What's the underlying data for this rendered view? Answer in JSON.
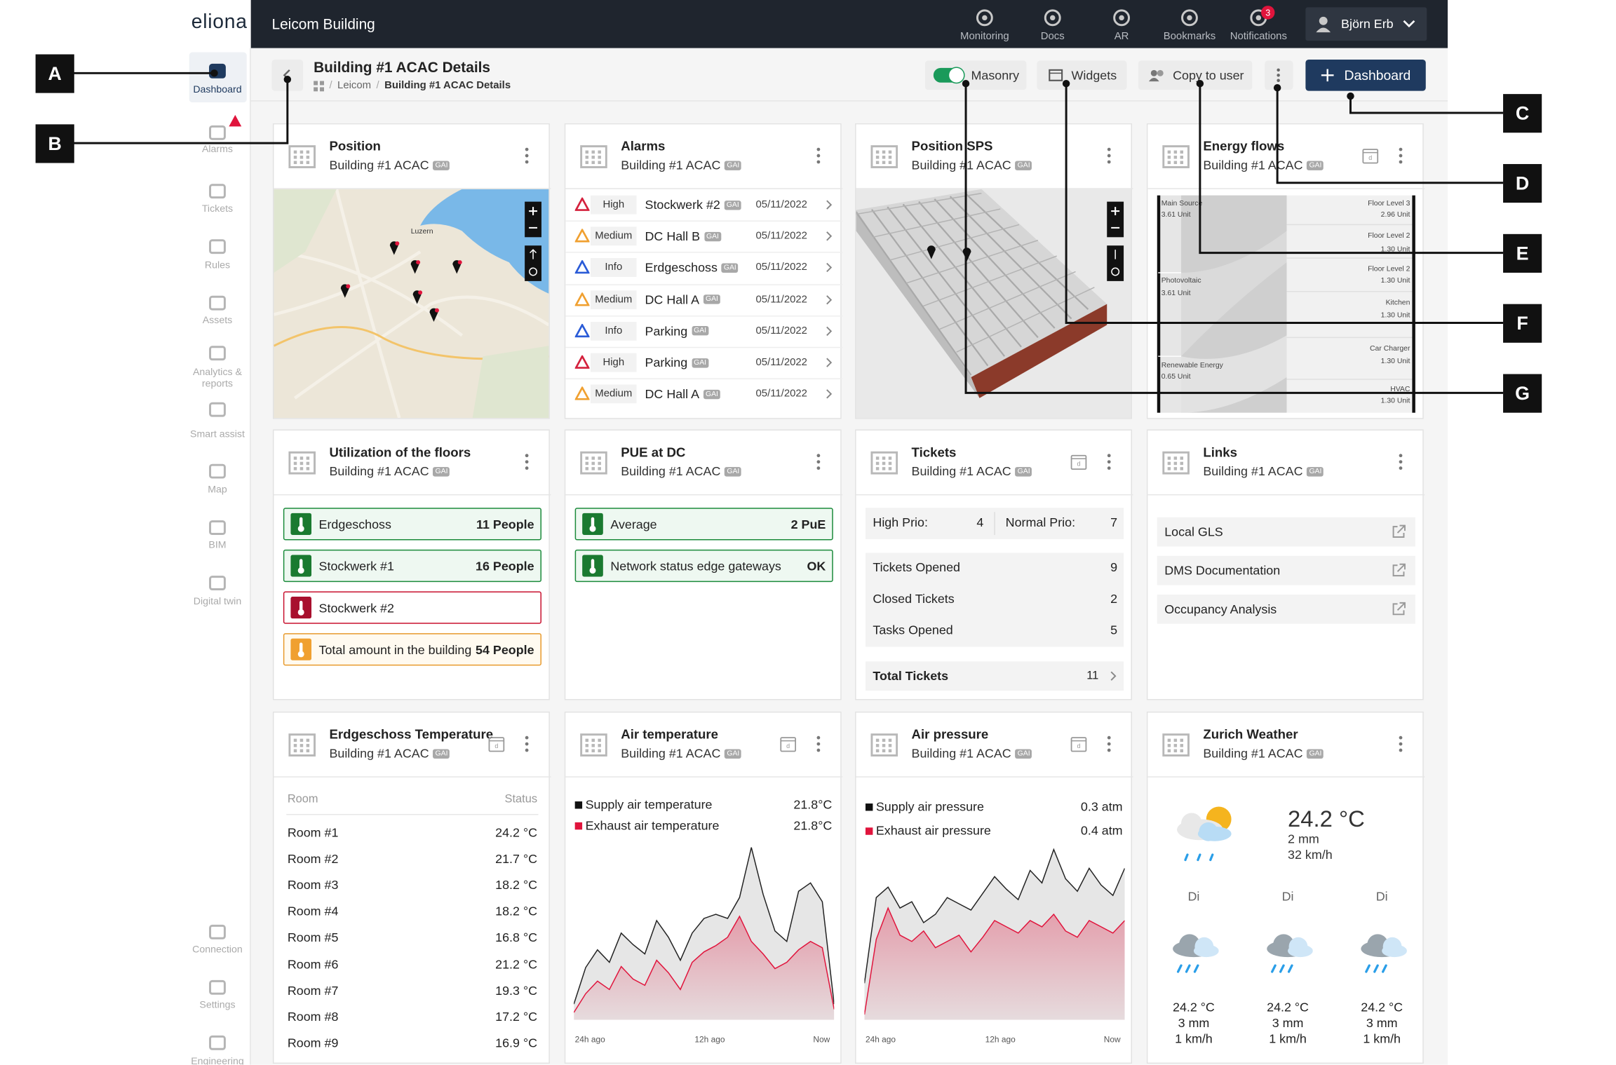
{
  "app": {
    "logo": "eliona",
    "title": "Leicom Building"
  },
  "topbar": {
    "items": [
      "Monitoring",
      "Docs",
      "AR",
      "Bookmarks",
      "Notifications"
    ],
    "notifications": 3,
    "user": "Björn Erb"
  },
  "sidebar": {
    "items": [
      "Dashboard",
      "Alarms",
      "Tickets",
      "Rules",
      "Assets",
      "Analytics & reports",
      "Smart assist",
      "Map",
      "BIM",
      "Digital twin"
    ],
    "bottom": [
      "Connection",
      "Settings",
      "Engineering"
    ]
  },
  "page": {
    "title": "Building #1 ACAC Details",
    "breadcrumb": [
      "Leicom",
      "Building #1 ACAC Details"
    ]
  },
  "toolbar": {
    "masonry": "Masonry",
    "widgets": "Widgets",
    "copy": "Copy to user",
    "add": "Dashboard"
  },
  "callouts": [
    "A",
    "B",
    "C",
    "D",
    "E",
    "F",
    "G"
  ],
  "widgets": [
    {
      "title": "Position",
      "subtitle": "Building #1 ACAC",
      "tag": "GAI",
      "calendar": false,
      "map_label": "Luzern"
    },
    {
      "title": "Alarms",
      "subtitle": "Building #1 ACAC",
      "tag": "GAI",
      "calendar": false,
      "rows": [
        [
          "High",
          "Stockwerk #2",
          "05/11/2022"
        ],
        [
          "Medium",
          "DC Hall B",
          "05/11/2022"
        ],
        [
          "Info",
          "Erdgeschoss",
          "05/11/2022"
        ],
        [
          "Medium",
          "DC Hall A",
          "05/11/2022"
        ],
        [
          "Info",
          "Parking",
          "05/11/2022"
        ],
        [
          "High",
          "Parking",
          "05/11/2022"
        ],
        [
          "Medium",
          "DC Hall A",
          "05/11/2022"
        ]
      ]
    },
    {
      "title": "Position SPS",
      "subtitle": "Building #1 ACAC",
      "tag": "GAI",
      "calendar": false
    },
    {
      "title": "Energy flows",
      "subtitle": "Building #1 ACAC",
      "tag": "GAI",
      "calendar": true,
      "sources": [
        {
          "name": "Main Source",
          "value": "3.61 Unit"
        },
        {
          "name": "Photovoltaic",
          "value": "3.61 Unit"
        },
        {
          "name": "Renewable Energy",
          "value": "0.65 Unit"
        }
      ],
      "targets": [
        {
          "name": "Floor Level 3",
          "value": "2.96 Unit"
        },
        {
          "name": "Floor Level 2",
          "value": "1.30 Unit"
        },
        {
          "name": "Floor Level 2",
          "value": "1.30 Unit"
        },
        {
          "name": "Kitchen",
          "value": "1.30 Unit"
        },
        {
          "name": "Car Charger",
          "value": "1.30 Unit"
        },
        {
          "name": "HVAC",
          "value": "1.30 Unit"
        }
      ]
    },
    {
      "title": "Utilization of the floors",
      "subtitle": "Building #1 ACAC",
      "tag": "GAI",
      "calendar": false,
      "rows": [
        {
          "name": "Erdgeschoss",
          "value": "11 People",
          "status": "ok"
        },
        {
          "name": "Stockwerk #1",
          "value": "16 People",
          "status": "ok"
        },
        {
          "name": "Stockwerk #2",
          "status": "alert"
        },
        {
          "name": "Total amount in the building",
          "value": "54 People",
          "status": "warn"
        }
      ]
    },
    {
      "title": "PUE at DC",
      "subtitle": "Building #1 ACAC",
      "tag": "GAI",
      "calendar": false,
      "rows": [
        {
          "name": "Average",
          "value": "2 PuE",
          "status": "ok"
        },
        {
          "name": "Network status edge gateways",
          "value": "OK",
          "status": "ok"
        }
      ]
    },
    {
      "title": "Tickets",
      "subtitle": "Building #1 ACAC",
      "tag": "GAI",
      "calendar": true,
      "prio": [
        {
          "label": "High Prio:",
          "value": 4
        },
        {
          "label": "Normal Prio:",
          "value": 7
        }
      ],
      "rows": [
        {
          "label": "Tickets Opened",
          "value": 9
        },
        {
          "label": "Closed Tickets",
          "value": 2
        },
        {
          "label": "Tasks Opened",
          "value": 5
        }
      ],
      "total": {
        "label": "Total Tickets",
        "value": 11
      }
    },
    {
      "title": "Links",
      "subtitle": "Building #1 ACAC",
      "tag": "GAI",
      "calendar": false,
      "links": [
        "Local GLS",
        "DMS Documentation",
        "Occupancy Analysis"
      ]
    },
    {
      "title": "Erdgeschoss Temperature",
      "subtitle": "Building #1 ACAC",
      "tag": "GAI",
      "calendar": true,
      "columns": [
        "Room",
        "Status"
      ],
      "rows": [
        [
          "Room #1",
          "24.2 °C"
        ],
        [
          "Room #2",
          "21.7 °C"
        ],
        [
          "Room #3",
          "18.2 °C"
        ],
        [
          "Room #4",
          "18.2 °C"
        ],
        [
          "Room #5",
          "16.8 °C"
        ],
        [
          "Room #6",
          "21.2 °C"
        ],
        [
          "Room #7",
          "19.3 °C"
        ],
        [
          "Room #8",
          "17.2 °C"
        ],
        [
          "Room #9",
          "16.9 °C"
        ]
      ]
    },
    {
      "title": "Air temperature",
      "subtitle": "Building #1 ACAC",
      "tag": "GAI",
      "calendar": true,
      "legend": [
        {
          "name": "Supply air temperature",
          "value": "21.8°C",
          "color": "#111111"
        },
        {
          "name": "Exhaust air temperature",
          "value": "21.8°C",
          "color": "#e0143c"
        }
      ],
      "x_labels": [
        "24h ago",
        "12h ago",
        "Now"
      ]
    },
    {
      "title": "Air pressure",
      "subtitle": "Building #1 ACAC",
      "tag": "GAI",
      "calendar": true,
      "legend": [
        {
          "name": "Supply air pressure",
          "value": "0.3 atm",
          "color": "#111111"
        },
        {
          "name": "Exhaust air pressure",
          "value": "0.4 atm",
          "color": "#e0143c"
        }
      ],
      "x_labels": [
        "24h ago",
        "12h ago",
        "Now"
      ]
    },
    {
      "title": "Zurich Weather",
      "subtitle": "Building #1 ACAC",
      "tag": "GAI",
      "calendar": false,
      "current": {
        "temp": "24.2 °C",
        "rain": "2 mm",
        "wind": "32 km/h"
      },
      "forecast": [
        {
          "day": "Di",
          "temp": "24.2 °C",
          "rain": "3 mm",
          "wind": "1 km/h"
        },
        {
          "day": "Di",
          "temp": "24.2 °C",
          "rain": "3 mm",
          "wind": "1 km/h"
        },
        {
          "day": "Di",
          "temp": "24.2 °C",
          "rain": "3 mm",
          "wind": "1 km/h"
        }
      ]
    }
  ]
}
